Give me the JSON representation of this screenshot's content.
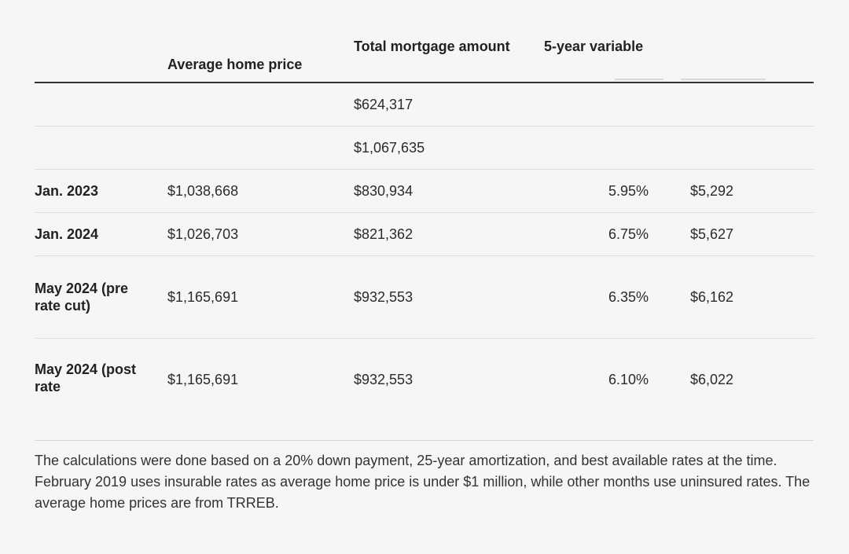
{
  "table": {
    "headers": {
      "average_home_price": "Average home price",
      "total_mortgage_amount": "Total mortgage amount",
      "five_year_variable": "5-year variable"
    },
    "rows": [
      {
        "period": "",
        "average_home_price": "",
        "total_mortgage_amount": "$624,317",
        "rate": "",
        "payment": ""
      },
      {
        "period": "",
        "average_home_price": "",
        "total_mortgage_amount": "$1,067,635",
        "rate": "",
        "payment": ""
      },
      {
        "period": "Jan. 2023",
        "average_home_price": "$1,038,668",
        "total_mortgage_amount": "$830,934",
        "rate": "5.95%",
        "payment": "$5,292"
      },
      {
        "period": "Jan. 2024",
        "average_home_price": "$1,026,703",
        "total_mortgage_amount": "$821,362",
        "rate": "6.75%",
        "payment": "$5,627"
      },
      {
        "period": "May 2024 (pre rate cut)",
        "average_home_price": "$1,165,691",
        "total_mortgage_amount": "$932,553",
        "rate": "6.35%",
        "payment": "$6,162"
      },
      {
        "period": "May 2024 (post rate",
        "average_home_price": "$1,165,691",
        "total_mortgage_amount": "$932,553",
        "rate": "6.10%",
        "payment": "$6,022"
      }
    ]
  },
  "footnote": "The calculations were done based on a 20% down payment, 25-year amortization, and best available rates at the time. February 2019 uses insurable rates as average home price is under $1 million, while other months use uninsured rates. The average home prices are from TRREB."
}
